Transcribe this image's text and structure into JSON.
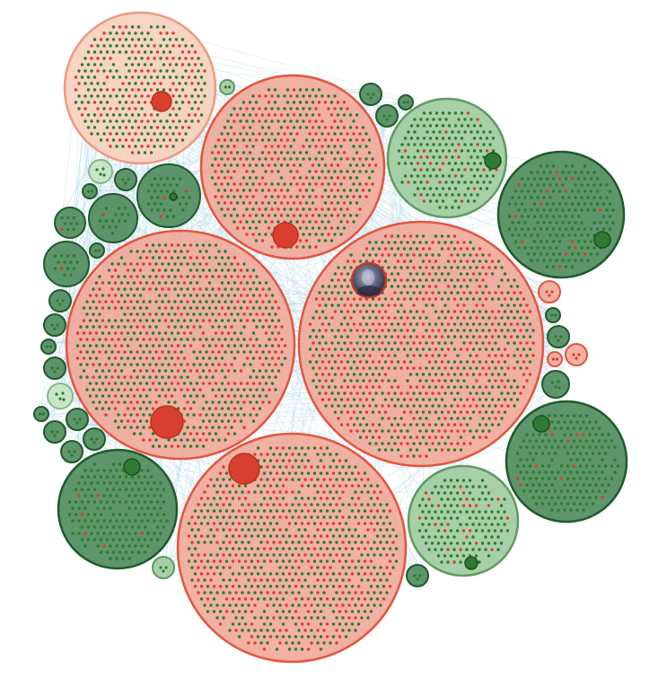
{
  "diagram": {
    "type": "circle-packing-network",
    "background_color": "#ffffff",
    "edge_color": "#a9d3e6",
    "node_colors": {
      "red": "#d93f2e",
      "green": "#2f7a32"
    },
    "cluster_fills": {
      "red": "#f0a393",
      "light_red": "#f6cfbd",
      "green": "#9fcb9e",
      "light_green": "#c6e3c0",
      "dark_green": "#4e8a5b"
    },
    "cluster_strokes": {
      "red": "#e2553f",
      "light_red": "#ec9a80",
      "green": "#5f9a5f",
      "light_green": "#86b986",
      "dark_green": "#1f5a2a"
    },
    "avatar": {
      "semantic": "profile-photo",
      "colors": [
        "#2a2a40",
        "#6c6f8a",
        "#c4c4d4"
      ]
    }
  }
}
